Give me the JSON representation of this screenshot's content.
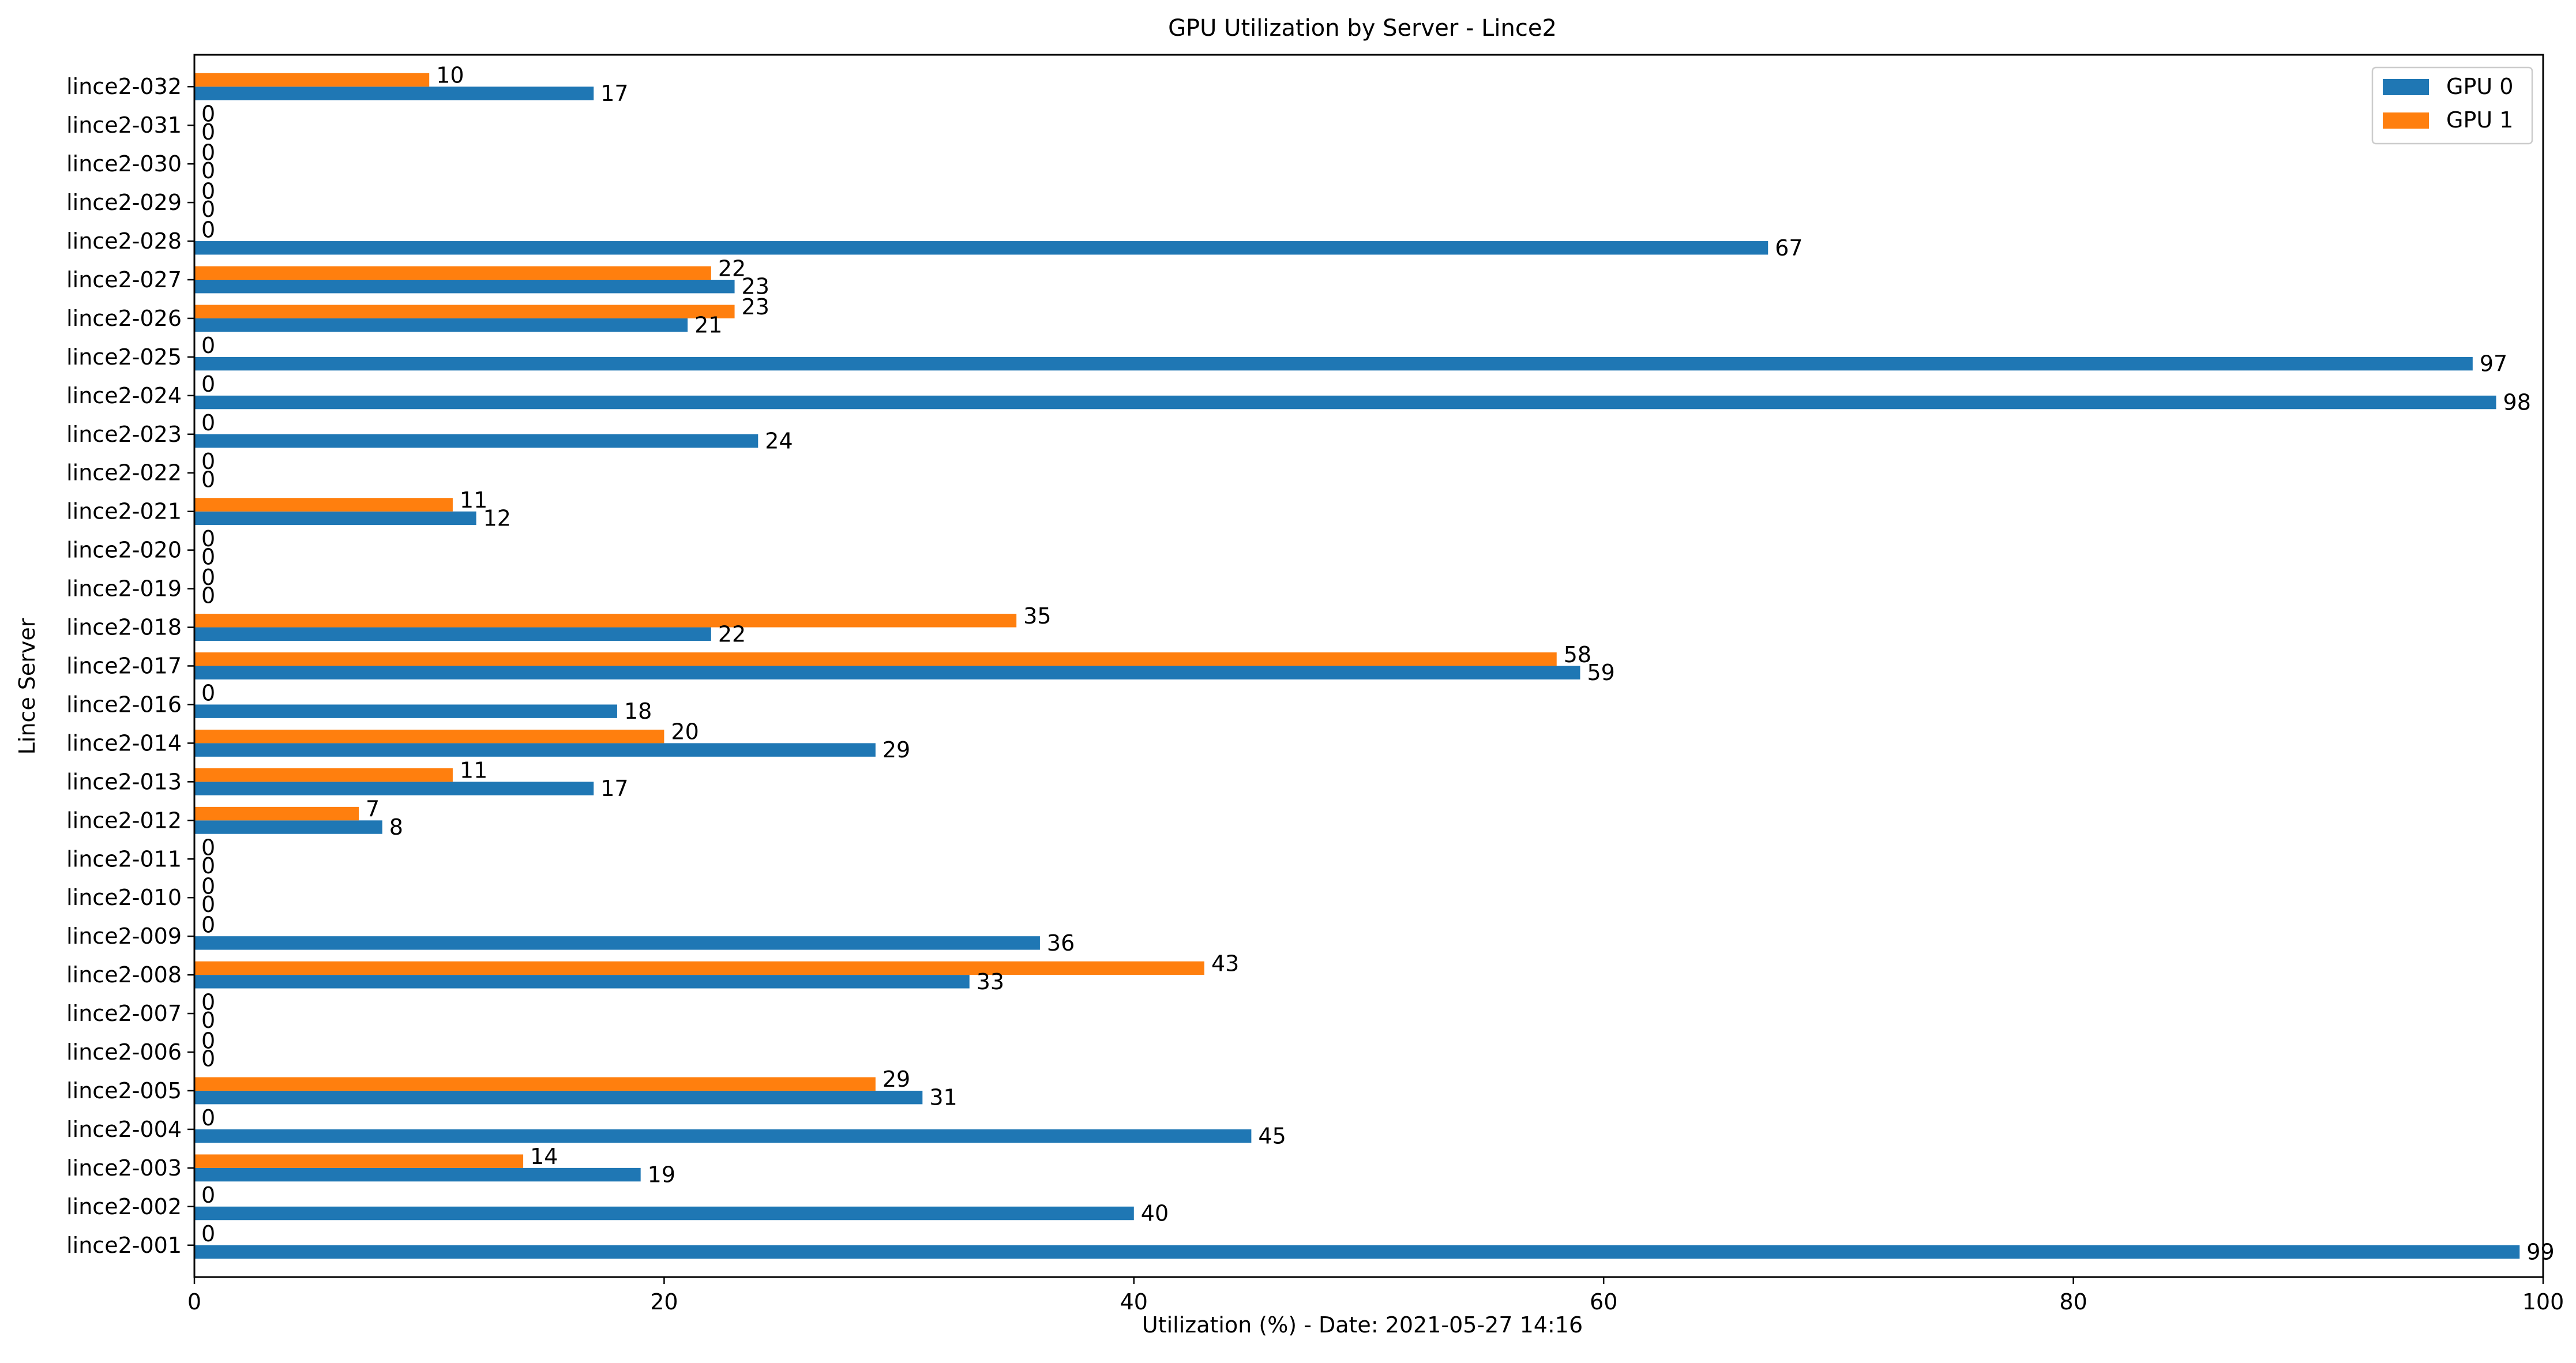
{
  "chart_data": {
    "type": "bar",
    "orientation": "horizontal",
    "title": "GPU Utilization by Server - Lince2",
    "xlabel": "Utilization (%) - Date: 2021-05-27 14:16",
    "ylabel": "Lince Server",
    "xlim": [
      0,
      100
    ],
    "xticks": [
      0,
      20,
      40,
      60,
      80,
      100
    ],
    "grid": false,
    "legend_position": "top-right",
    "categories": [
      "lince2-001",
      "lince2-002",
      "lince2-003",
      "lince2-004",
      "lince2-005",
      "lince2-006",
      "lince2-007",
      "lince2-008",
      "lince2-009",
      "lince2-010",
      "lince2-011",
      "lince2-012",
      "lince2-013",
      "lince2-014",
      "lince2-016",
      "lince2-017",
      "lince2-018",
      "lince2-019",
      "lince2-020",
      "lince2-021",
      "lince2-022",
      "lince2-023",
      "lince2-024",
      "lince2-025",
      "lince2-026",
      "lince2-027",
      "lince2-028",
      "lince2-029",
      "lince2-030",
      "lince2-031",
      "lince2-032"
    ],
    "series": [
      {
        "name": "GPU 0",
        "color": "#1f77b4",
        "values": [
          99,
          40,
          19,
          45,
          31,
          0,
          0,
          33,
          36,
          0,
          0,
          8,
          17,
          29,
          18,
          59,
          22,
          0,
          0,
          12,
          0,
          24,
          98,
          97,
          21,
          23,
          67,
          0,
          0,
          0,
          17
        ]
      },
      {
        "name": "GPU 1",
        "color": "#ff7f0e",
        "values": [
          0,
          0,
          14,
          0,
          29,
          0,
          0,
          43,
          0,
          0,
          0,
          7,
          11,
          20,
          0,
          58,
          35,
          0,
          0,
          11,
          0,
          0,
          0,
          0,
          23,
          22,
          0,
          0,
          0,
          0,
          10
        ]
      }
    ]
  }
}
